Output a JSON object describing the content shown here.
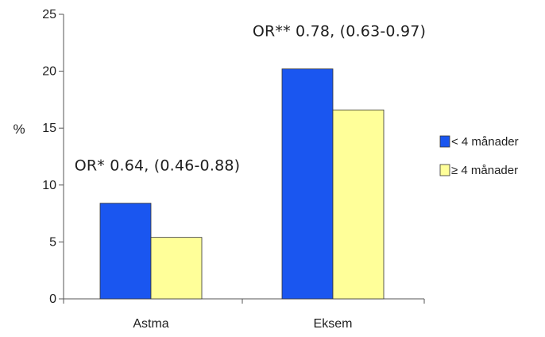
{
  "chart_data": {
    "type": "bar",
    "title": "",
    "xlabel": "",
    "ylabel": "%",
    "ylim": [
      0,
      25
    ],
    "yticks": [
      0,
      5,
      10,
      15,
      20,
      25
    ],
    "grid": false,
    "legend_position": "right",
    "categories": [
      "Astma",
      "Eksem"
    ],
    "series": [
      {
        "name": "< 4 månader",
        "values": [
          8.4,
          20.2
        ],
        "color": "#1a56f0"
      },
      {
        "name": "≥ 4 månader",
        "legend_symbol": "≥",
        "legend_rest": " 4 månader",
        "values": [
          5.4,
          16.6
        ],
        "color": "#ffff99"
      }
    ],
    "annotations": [
      {
        "category": "Astma",
        "text": "OR* 0.64, (0.46-0.88)"
      },
      {
        "category": "Eksem",
        "text": "OR** 0.78, (0.63-0.97)"
      }
    ]
  }
}
